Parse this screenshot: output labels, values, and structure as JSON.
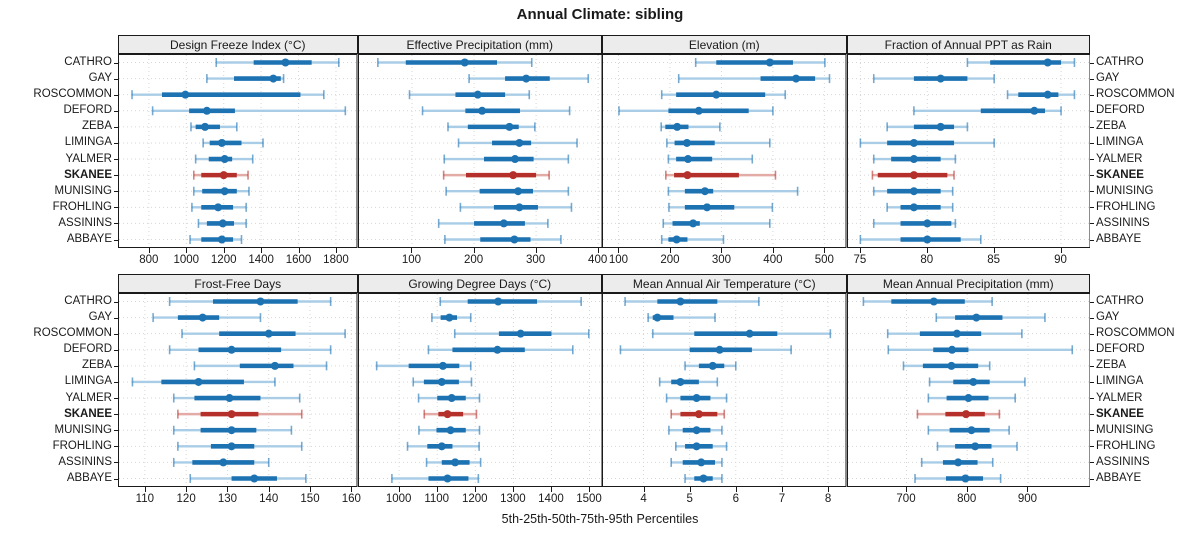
{
  "title": "Annual Climate: sibling",
  "xlabel": "5th-25th-50th-75th-95th Percentiles",
  "colors": {
    "normal_dark": "#1d72b2",
    "normal_light": "#a9cde6",
    "highlight_dark": "#b5302a",
    "highlight_light": "#e2aba6",
    "strip_bg": "#ececec",
    "grid": "#d6d6d6",
    "border": "#1a1a1a"
  },
  "chart_data": {
    "type": "interval-dotplot-trellis",
    "layout": {
      "rows": 2,
      "cols": 4
    },
    "percentile_levels": [
      5,
      25,
      50,
      75,
      95
    ],
    "stations": [
      "CATHRO",
      "GAY",
      "ROSCOMMON",
      "DEFORD",
      "ZEBA",
      "LIMINGA",
      "YALMER",
      "SKANEE",
      "MUNISING",
      "FROHLING",
      "ASSININS",
      "ABBAYE"
    ],
    "highlight_station": "SKANEE",
    "panels": [
      {
        "title": "Design Freeze Index (°C)",
        "ticks": [
          800,
          1000,
          1200,
          1400,
          1600,
          1800
        ],
        "domain": [
          635,
          1915
        ],
        "values": [
          [
            1160,
            1360,
            1530,
            1670,
            1815
          ],
          [
            1110,
            1255,
            1465,
            1505,
            1520
          ],
          [
            710,
            870,
            995,
            1610,
            1735
          ],
          [
            820,
            1015,
            1110,
            1260,
            1850
          ],
          [
            1025,
            1050,
            1100,
            1180,
            1270
          ],
          [
            1090,
            1125,
            1190,
            1295,
            1410
          ],
          [
            1050,
            1120,
            1205,
            1245,
            1355
          ],
          [
            1040,
            1080,
            1200,
            1270,
            1330
          ],
          [
            1040,
            1085,
            1205,
            1270,
            1335
          ],
          [
            1030,
            1080,
            1170,
            1250,
            1320
          ],
          [
            1065,
            1110,
            1195,
            1255,
            1320
          ],
          [
            1020,
            1080,
            1190,
            1250,
            1295
          ]
        ]
      },
      {
        "title": "Effective Precipitation (mm)",
        "ticks": [
          100,
          200,
          300,
          400
        ],
        "domain": [
          13,
          407
        ],
        "values": [
          [
            45,
            90,
            185,
            237,
            293
          ],
          [
            192,
            250,
            284,
            322,
            384
          ],
          [
            96,
            170,
            206,
            250,
            289
          ],
          [
            117,
            186,
            213,
            274,
            354
          ],
          [
            158,
            190,
            257,
            272,
            298
          ],
          [
            175,
            229,
            273,
            292,
            366
          ],
          [
            152,
            216,
            266,
            296,
            352
          ],
          [
            151,
            187,
            263,
            300,
            321
          ],
          [
            155,
            209,
            271,
            295,
            352
          ],
          [
            178,
            232,
            273,
            303,
            357
          ],
          [
            143,
            200,
            248,
            282,
            319
          ],
          [
            153,
            210,
            265,
            291,
            340
          ]
        ]
      },
      {
        "title": "Elevation (m)",
        "ticks": [
          100,
          200,
          300,
          400,
          500
        ],
        "domain": [
          68,
          543
        ],
        "values": [
          [
            250,
            290,
            394,
            439,
            501
          ],
          [
            217,
            376,
            445,
            482,
            510
          ],
          [
            184,
            212,
            290,
            385,
            424
          ],
          [
            101,
            197,
            256,
            353,
            400
          ],
          [
            183,
            191,
            214,
            236,
            297
          ],
          [
            194,
            209,
            233,
            287,
            394
          ],
          [
            197,
            212,
            235,
            282,
            360
          ],
          [
            192,
            208,
            234,
            334,
            405
          ],
          [
            197,
            229,
            268,
            284,
            448
          ],
          [
            198,
            229,
            272,
            325,
            399
          ],
          [
            187,
            205,
            245,
            258,
            394
          ],
          [
            184,
            197,
            213,
            234,
            304
          ]
        ]
      },
      {
        "title": "Fraction of Annual PPT as Rain",
        "ticks": [
          75,
          80,
          85,
          90
        ],
        "domain": [
          74,
          92.2
        ],
        "values": [
          [
            83,
            84.7,
            89,
            90,
            91
          ],
          [
            76,
            79,
            81,
            83,
            85
          ],
          [
            86,
            86.8,
            89,
            89.8,
            91
          ],
          [
            79,
            84,
            88,
            88.8,
            90
          ],
          [
            77,
            79,
            81,
            82,
            83
          ],
          [
            75,
            77,
            79,
            82,
            85
          ],
          [
            76,
            77.3,
            79,
            81,
            82.1
          ],
          [
            75.9,
            76.3,
            79,
            81.5,
            82
          ],
          [
            76,
            77,
            79,
            81,
            81.9
          ],
          [
            77,
            78,
            79,
            81,
            81.9
          ],
          [
            76,
            78,
            80,
            81.8,
            82.1
          ],
          [
            75,
            78,
            80,
            82.5,
            84
          ]
        ]
      },
      {
        "title": "Frost-Free Days",
        "ticks": [
          110,
          120,
          130,
          140,
          150,
          160
        ],
        "domain": [
          103.5,
          161.5
        ],
        "values": [
          [
            116,
            126.5,
            138,
            147,
            155
          ],
          [
            112,
            118,
            124,
            128,
            138
          ],
          [
            119,
            128,
            140,
            146.5,
            158.5
          ],
          [
            116,
            123,
            131,
            143,
            155
          ],
          [
            122,
            133,
            141.5,
            146,
            154
          ],
          [
            107,
            114,
            123,
            134,
            141.5
          ],
          [
            117,
            122,
            130.5,
            138,
            147.5
          ],
          [
            118,
            123.5,
            131,
            137.5,
            148
          ],
          [
            117,
            123.5,
            131,
            137,
            145.5
          ],
          [
            118,
            126,
            131,
            136.5,
            148
          ],
          [
            117,
            121.5,
            129,
            136.5,
            140
          ],
          [
            121,
            131,
            136.5,
            142,
            149
          ]
        ]
      },
      {
        "title": "Growing Degree Days (°C)",
        "ticks": [
          1000,
          1100,
          1200,
          1300,
          1400,
          1500
        ],
        "domain": [
          892,
          1534
        ],
        "values": [
          [
            1108,
            1180,
            1260,
            1362,
            1478
          ],
          [
            1086,
            1109,
            1132,
            1152,
            1188
          ],
          [
            1146,
            1262,
            1319,
            1400,
            1498
          ],
          [
            1077,
            1140,
            1258,
            1330,
            1456
          ],
          [
            941,
            1025,
            1115,
            1158,
            1188
          ],
          [
            1037,
            1065,
            1112,
            1157,
            1190
          ],
          [
            1051,
            1100,
            1138,
            1175,
            1211
          ],
          [
            1066,
            1103,
            1127,
            1168,
            1203
          ],
          [
            1052,
            1098,
            1135,
            1175,
            1211
          ],
          [
            1022,
            1074,
            1112,
            1140,
            1210
          ],
          [
            1072,
            1112,
            1147,
            1185,
            1214
          ],
          [
            981,
            1077,
            1127,
            1182,
            1208
          ]
        ]
      },
      {
        "title": "Mean Annual Air Temperature (°C)",
        "ticks": [
          4,
          5,
          6,
          7,
          8
        ],
        "domain": [
          3.1,
          8.4
        ],
        "values": [
          [
            3.6,
            4.3,
            4.8,
            5.6,
            6.5
          ],
          [
            4.1,
            4.2,
            4.3,
            4.65,
            5.55
          ],
          [
            4.2,
            5.1,
            6.3,
            6.9,
            8.05
          ],
          [
            3.5,
            5.0,
            5.65,
            6.35,
            7.2
          ],
          [
            4.9,
            5.2,
            5.5,
            5.75,
            6.0
          ],
          [
            4.35,
            4.6,
            4.8,
            5.2,
            5.6
          ],
          [
            4.5,
            4.8,
            5.15,
            5.45,
            5.8
          ],
          [
            4.6,
            4.8,
            5.2,
            5.6,
            5.75
          ],
          [
            4.55,
            4.85,
            5.15,
            5.45,
            5.7
          ],
          [
            4.7,
            4.9,
            5.15,
            5.5,
            5.8
          ],
          [
            4.6,
            4.85,
            5.25,
            5.55,
            5.7
          ],
          [
            4.9,
            5.1,
            5.3,
            5.5,
            5.7
          ]
        ]
      },
      {
        "title": "Mean Annual Precipitation (mm)",
        "ticks": [
          700,
          800,
          900
        ],
        "domain": [
          602,
          1003
        ],
        "values": [
          [
            629,
            675,
            745,
            796,
            841
          ],
          [
            749,
            780,
            815,
            858,
            928
          ],
          [
            669,
            722,
            783,
            823,
            890
          ],
          [
            670,
            744,
            775,
            802,
            973
          ],
          [
            695,
            727,
            774,
            818,
            837
          ],
          [
            738,
            777,
            810,
            837,
            895
          ],
          [
            736,
            766,
            802,
            835,
            879
          ],
          [
            718,
            764,
            798,
            829,
            853
          ],
          [
            736,
            771,
            807,
            837,
            869
          ],
          [
            751,
            780,
            813,
            840,
            882
          ],
          [
            725,
            760,
            785,
            817,
            842
          ],
          [
            714,
            765,
            797,
            826,
            855
          ]
        ]
      }
    ]
  }
}
